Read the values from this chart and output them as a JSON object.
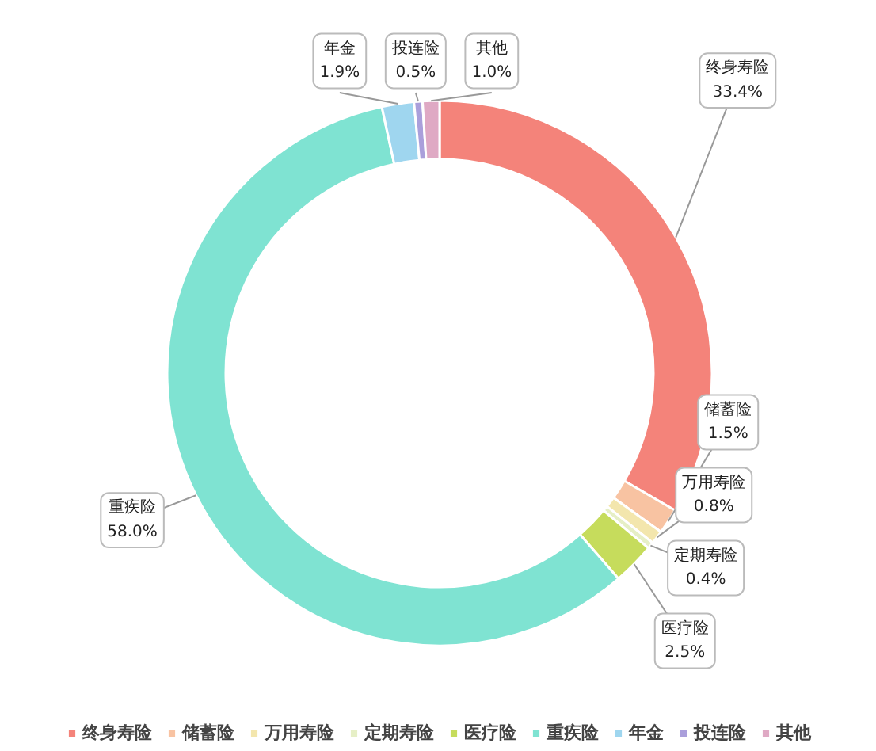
{
  "chart_data": {
    "type": "donut",
    "categories": [
      "终身寿险",
      "储蓄险",
      "万用寿险",
      "定期寿险",
      "医疗险",
      "重疾险",
      "年金",
      "投连险",
      "其他"
    ],
    "values": [
      33.4,
      1.5,
      0.8,
      0.4,
      2.5,
      58.0,
      1.9,
      0.5,
      1.0
    ],
    "colors": [
      "#f4837a",
      "#f8c3a2",
      "#f3e6ad",
      "#e6efc6",
      "#c6dc5c",
      "#7fe3d2",
      "#9fd6ef",
      "#aa9fdb",
      "#dfa9c4"
    ],
    "value_labels": [
      "33.4%",
      "1.5%",
      "0.8%",
      "0.4%",
      "2.5%",
      "58.0%",
      "1.9%",
      "0.5%",
      "1.0%"
    ],
    "legend": "bottom"
  }
}
